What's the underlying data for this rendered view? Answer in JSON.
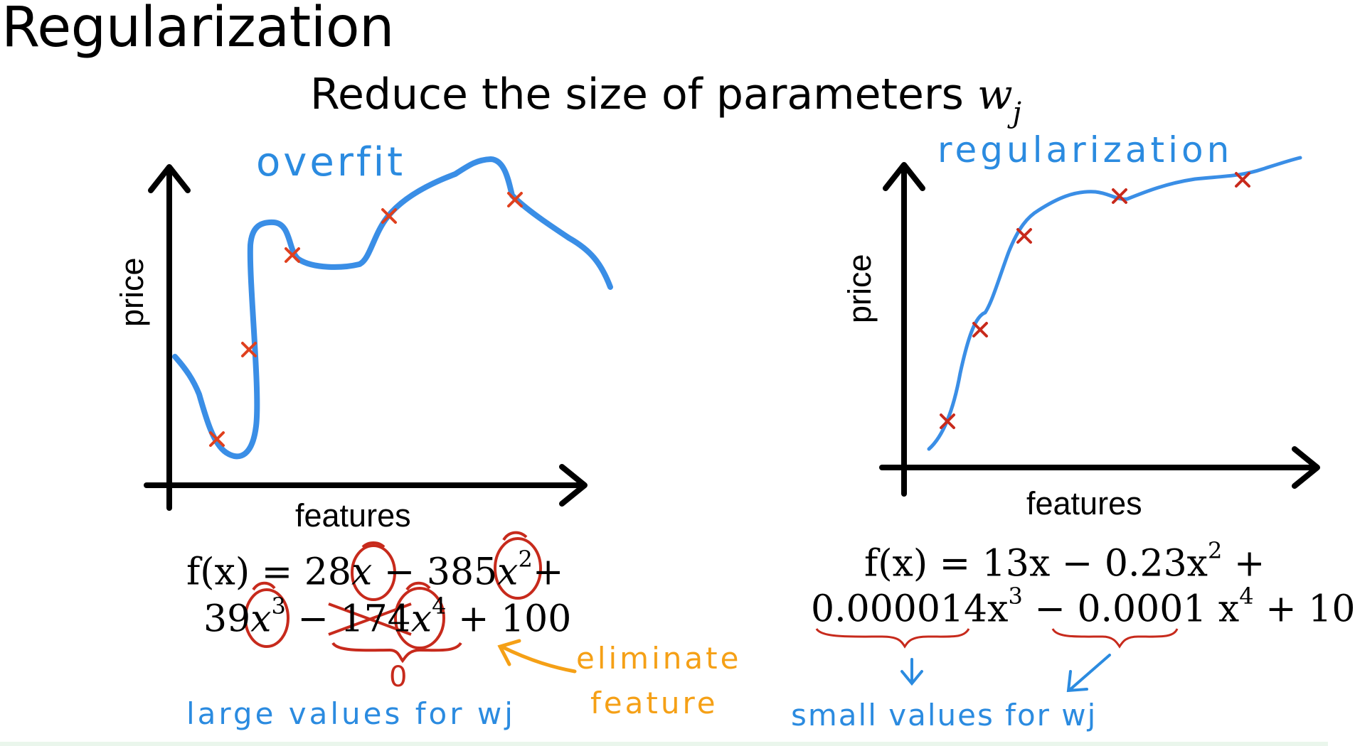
{
  "slide": {
    "title": "Regularization",
    "subtitle_text": "Reduce the size of parameters",
    "subtitle_var": "w",
    "subtitle_sub": "j"
  },
  "left_plot": {
    "curve_label": "overfit",
    "x_label": "features",
    "y_label": "price",
    "curve_color": "#3a8ee6",
    "mark_color": "#e0401e"
  },
  "right_plot": {
    "curve_label": "regularization",
    "x_label": "features",
    "y_label": "price",
    "curve_color": "#3a8ee6",
    "mark_color": "#c82a1c"
  },
  "left_equation": {
    "line1_a": "f(x) = 28",
    "line1_x": "x",
    "line1_b": " − 385",
    "line1_x2": "x",
    "line1_sup2": "2",
    "line1_c": "+",
    "line2_a": "39",
    "line2_x": "x",
    "line2_sup3": "3",
    "line2_b": " − ",
    "line2_coef": "174",
    "line2_x4": "x",
    "line2_sup4": "4",
    "line2_c": "+ 100",
    "zero_note": "0"
  },
  "right_equation": {
    "line1": "f(x) = 13x − 0.23x",
    "line1_sup": "2",
    "line1_end": " +",
    "line2_a": "0.000014x",
    "line2_sup3": "3",
    "line2_b": " − 0.0001 x",
    "line2_sup4": "4",
    "line2_c": " + 10"
  },
  "annotations": {
    "eliminate": "eliminate",
    "feature": "feature",
    "large_values": "large values for wj",
    "small_values": "small values for wj"
  },
  "colors": {
    "blue_hand": "#2b8be0",
    "orange_hand": "#f5a016",
    "red_hand": "#c72a1c"
  }
}
